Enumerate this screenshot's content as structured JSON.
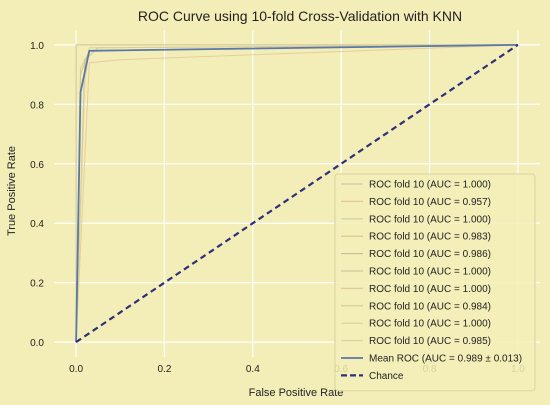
{
  "chart_data": {
    "type": "line",
    "title": "ROC Curve using 10-fold Cross-Validation with KNN",
    "xlabel": "False Positive Rate",
    "ylabel": "True Positive Rate",
    "xlim": [
      -0.05,
      1.05
    ],
    "ylim": [
      -0.05,
      1.05
    ],
    "xticks": [
      "0.0",
      "0.2",
      "0.4",
      "0.6",
      "0.8",
      "1.0"
    ],
    "yticks": [
      "0.0",
      "0.2",
      "0.4",
      "0.6",
      "0.8",
      "1.0"
    ],
    "grid": true,
    "legend_position": "lower-right",
    "series": [
      {
        "name": "ROC fold 10 (AUC = 1.000)",
        "color": "#c9c6a0",
        "x": [
          0,
          0,
          1
        ],
        "y": [
          0,
          1,
          1
        ]
      },
      {
        "name": "ROC fold 10 (AUC = 0.957)",
        "color": "#e3c79a",
        "x": [
          0,
          0.03,
          0.1,
          1
        ],
        "y": [
          0,
          0.94,
          0.95,
          1
        ]
      },
      {
        "name": "ROC fold 10 (AUC = 1.000)",
        "color": "#c7d3a0",
        "x": [
          0,
          0,
          1
        ],
        "y": [
          0,
          1,
          1
        ]
      },
      {
        "name": "ROC fold 10 (AUC = 0.983)",
        "color": "#d8c38a",
        "x": [
          0,
          0.01,
          0.03,
          1
        ],
        "y": [
          0,
          0.9,
          0.98,
          1
        ]
      },
      {
        "name": "ROC fold 10 (AUC = 0.986)",
        "color": "#c9bf98",
        "x": [
          0,
          0.02,
          0.05,
          1
        ],
        "y": [
          0,
          0.95,
          0.99,
          1
        ]
      },
      {
        "name": "ROC fold 10 (AUC = 1.000)",
        "color": "#cfc79f",
        "x": [
          0,
          0,
          1
        ],
        "y": [
          0,
          1,
          1
        ]
      },
      {
        "name": "ROC fold 10 (AUC = 1.000)",
        "color": "#e2c7a4",
        "x": [
          0,
          0,
          1
        ],
        "y": [
          0,
          1,
          1
        ]
      },
      {
        "name": "ROC fold 10 (AUC = 0.984)",
        "color": "#cfc890",
        "x": [
          0,
          0.01,
          0.03,
          1
        ],
        "y": [
          0,
          0.92,
          0.98,
          1
        ]
      },
      {
        "name": "ROC fold 10 (AUC = 1.000)",
        "color": "#d6d29c",
        "x": [
          0,
          0,
          1
        ],
        "y": [
          0,
          1,
          1
        ]
      },
      {
        "name": "ROC fold 10 (AUC = 0.985)",
        "color": "#dccf9c",
        "x": [
          0,
          0.02,
          0.03,
          1
        ],
        "y": [
          0,
          0.88,
          0.99,
          1
        ]
      },
      {
        "name": "Mean ROC (AUC = 0.989 ± 0.013)",
        "color": "#5a78a8",
        "x": [
          0,
          0.01,
          0.03,
          1
        ],
        "y": [
          0,
          0.84,
          0.98,
          1
        ]
      },
      {
        "name": "Chance",
        "color": "#2e2f7a",
        "dashed": true,
        "x": [
          0,
          1
        ],
        "y": [
          0,
          1
        ]
      }
    ]
  }
}
